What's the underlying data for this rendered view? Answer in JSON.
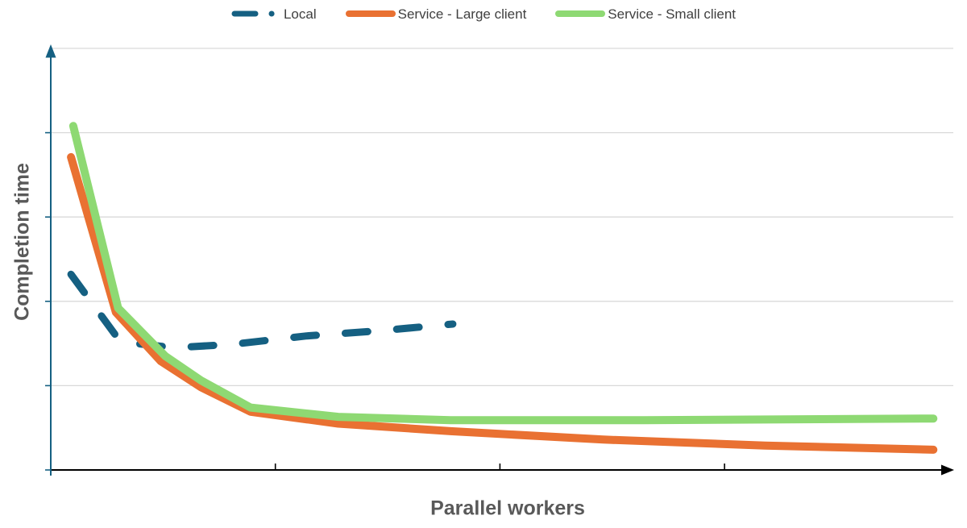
{
  "legend": {
    "items": [
      {
        "label": "Local",
        "color": "#156082",
        "style": "dash-dot"
      },
      {
        "label": "Service - Large client",
        "color": "#E97132",
        "style": "solid"
      },
      {
        "label": "Service - Small client",
        "color": "#8ED973",
        "style": "solid"
      }
    ]
  },
  "chart_data": {
    "type": "line",
    "title": "",
    "xlabel": "Parallel workers",
    "ylabel": "Completion time",
    "grid": true,
    "legend_position": "top",
    "axes_note": "No numeric tick labels are shown; values below are in gridline units (y: 0 = x-axis, 1 unit per horizontal gridline, 5 gridlines) and x-tick units (1 unit per x-axis tick mark)",
    "x_axis": {
      "range": [
        0,
        4.02
      ],
      "ticks": [
        1,
        2,
        3
      ],
      "tick_labels_visible": false,
      "arrow": true
    },
    "y_axis": {
      "range": [
        0,
        5
      ],
      "gridlines": [
        1,
        2,
        3,
        4,
        5
      ],
      "tick_labels_visible": false,
      "arrow": true
    },
    "colors": {
      "x_axis": "#000000",
      "y_axis": "#156082",
      "gridline": "#D9D9D9",
      "axis_title": "#595959",
      "legend_text": "#404040",
      "background": "#FFFFFF"
    },
    "series": [
      {
        "name": "Local",
        "color": "#156082",
        "line_style": "dashed",
        "width": 9,
        "points": [
          [
            0.09,
            2.32
          ],
          [
            0.31,
            1.52
          ],
          [
            0.55,
            1.45
          ],
          [
            0.81,
            1.49
          ],
          [
            1.14,
            1.59
          ],
          [
            1.46,
            1.65
          ],
          [
            1.79,
            1.73
          ]
        ]
      },
      {
        "name": "Service - Large client",
        "color": "#E97132",
        "line_style": "solid",
        "width": 10,
        "points": [
          [
            0.09,
            3.71
          ],
          [
            0.29,
            1.87
          ],
          [
            0.49,
            1.29
          ],
          [
            0.67,
            0.98
          ],
          [
            0.89,
            0.69
          ],
          [
            1.28,
            0.55
          ],
          [
            1.78,
            0.46
          ],
          [
            2.46,
            0.36
          ],
          [
            3.18,
            0.29
          ],
          [
            3.93,
            0.24
          ]
        ]
      },
      {
        "name": "Service - Small client",
        "color": "#8ED973",
        "line_style": "solid",
        "width": 10,
        "points": [
          [
            0.1,
            4.08
          ],
          [
            0.3,
            1.92
          ],
          [
            0.51,
            1.35
          ],
          [
            0.67,
            1.06
          ],
          [
            0.89,
            0.74
          ],
          [
            1.28,
            0.63
          ],
          [
            1.78,
            0.59
          ],
          [
            2.64,
            0.59
          ],
          [
            3.93,
            0.61
          ]
        ]
      }
    ]
  }
}
